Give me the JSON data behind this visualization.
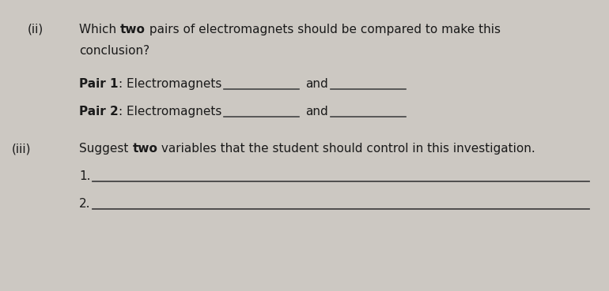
{
  "bg_color": "#ccc8c2",
  "text_color": "#1a1a1a",
  "font_size": 11.0,
  "underline_color": "#444444",
  "line1_ii_label": "(ii)",
  "line1_q1": "Which ",
  "line1_q1_bold": "two",
  "line1_q1_rest": " pairs of electromagnets should be compared to make this",
  "line2_q1": "conclusion?",
  "pair1_bold": "Pair 1",
  "pair1_rest": ": Electromagnets",
  "pair1_and": "and",
  "pair2_bold": "Pair 2",
  "pair2_rest": ": Electromagnets",
  "pair2_and": "and",
  "iii_label": "(iii)",
  "iii_q_pre": "Suggest ",
  "iii_q_bold": "two",
  "iii_q_rest": " variables that the student should control in this investigation.",
  "num1": "1.",
  "num2": "2."
}
